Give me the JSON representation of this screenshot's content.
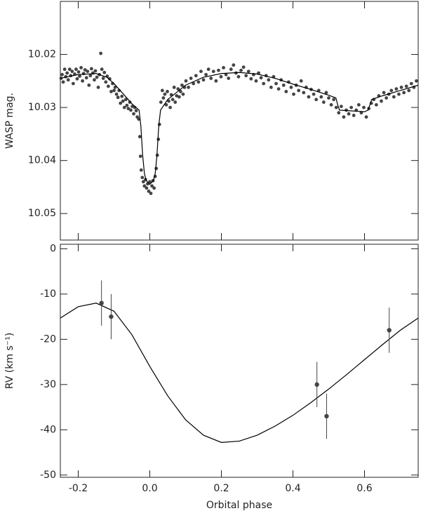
{
  "chart_data": [
    {
      "type": "scatter",
      "ylabel": "WASP mag.",
      "xlim": [
        -0.25,
        0.75
      ],
      "ylim": [
        10.055,
        10.01
      ],
      "xticks": [
        -0.2,
        {
          "value": 0,
          "label": "0.0"
        },
        0.2,
        0.4,
        0.6
      ],
      "show_xtick_labels": false,
      "yticks": [
        10.02,
        10.03,
        10.04,
        10.05
      ],
      "series": [
        {
          "mode": "markers",
          "color": "#444444",
          "x": [
            -0.248,
            -0.245,
            -0.242,
            -0.238,
            -0.235,
            -0.231,
            -0.228,
            -0.224,
            -0.221,
            -0.217,
            -0.214,
            -0.21,
            -0.206,
            -0.203,
            -0.199,
            -0.196,
            -0.192,
            -0.188,
            -0.185,
            -0.181,
            -0.177,
            -0.174,
            -0.17,
            -0.166,
            -0.163,
            -0.159,
            -0.155,
            -0.152,
            -0.148,
            -0.144,
            -0.141,
            -0.137,
            -0.134,
            -0.13,
            -0.127,
            -0.123,
            -0.119,
            -0.116,
            -0.112,
            -0.108,
            -0.104,
            -0.1,
            -0.097,
            -0.093,
            -0.089,
            -0.086,
            -0.082,
            -0.078,
            -0.075,
            -0.071,
            -0.067,
            -0.064,
            -0.06,
            -0.056,
            -0.053,
            -0.049,
            -0.045,
            -0.042,
            -0.038,
            -0.035,
            -0.031,
            -0.028,
            -0.026,
            -0.024,
            -0.021,
            -0.018,
            -0.015,
            -0.012,
            -0.009,
            -0.006,
            -0.003,
            0,
            0.003,
            0.006,
            0.009,
            0.012,
            0.015,
            0.018,
            0.021,
            0.024,
            0.027,
            0.031,
            0.035,
            0.038,
            0.042,
            0.046,
            0.049,
            0.053,
            0.057,
            0.06,
            0.064,
            0.068,
            0.071,
            0.075,
            0.079,
            0.082,
            0.086,
            0.09,
            0.093,
            0.097,
            0.101,
            0.108,
            0.115,
            0.122,
            0.129,
            0.136,
            0.143,
            0.15,
            0.157,
            0.164,
            0.171,
            0.178,
            0.185,
            0.192,
            0.199,
            0.206,
            0.213,
            0.22,
            0.227,
            0.234,
            0.241,
            0.248,
            0.255,
            0.262,
            0.269,
            0.276,
            0.283,
            0.29,
            0.297,
            0.304,
            0.311,
            0.318,
            0.325,
            0.332,
            0.339,
            0.346,
            0.353,
            0.36,
            0.367,
            0.374,
            0.381,
            0.388,
            0.395,
            0.402,
            0.409,
            0.416,
            0.423,
            0.43,
            0.437,
            0.444,
            0.451,
            0.458,
            0.465,
            0.472,
            0.479,
            0.486,
            0.493,
            0.5,
            0.507,
            0.514,
            0.521,
            0.528,
            0.535,
            0.542,
            0.549,
            0.556,
            0.563,
            0.57,
            0.577,
            0.584,
            0.591,
            0.598,
            0.605,
            0.612,
            0.619,
            0.626,
            0.633,
            0.64,
            0.647,
            0.654,
            0.661,
            0.668,
            0.675,
            0.682,
            0.689,
            0.696,
            0.703,
            0.71,
            0.717,
            0.724,
            0.731,
            0.738,
            0.745
          ],
          "values": [
            10.0245,
            10.0238,
            10.0252,
            10.0228,
            10.0242,
            10.0235,
            10.0248,
            10.0228,
            10.024,
            10.0232,
            10.0255,
            10.0237,
            10.0228,
            10.0246,
            10.0233,
            10.0241,
            10.0225,
            10.025,
            10.0236,
            10.0229,
            10.0244,
            10.0232,
            10.0258,
            10.024,
            10.0227,
            10.0235,
            10.0248,
            10.0231,
            10.0243,
            10.0262,
            10.0238,
            10.0198,
            10.0228,
            10.0245,
            10.0234,
            10.0252,
            10.0241,
            10.026,
            10.0246,
            10.027,
            10.0255,
            10.0268,
            10.0262,
            10.0275,
            10.0281,
            10.0268,
            10.0292,
            10.0279,
            10.0288,
            10.03,
            10.0285,
            10.0296,
            10.0302,
            10.029,
            10.0305,
            10.0298,
            10.0312,
            10.03,
            10.0306,
            10.0318,
            10.0322,
            10.0355,
            10.0392,
            10.0418,
            10.0432,
            10.044,
            10.0448,
            10.0436,
            10.0452,
            10.0444,
            10.0458,
            10.044,
            10.0462,
            10.0448,
            10.0438,
            10.0452,
            10.043,
            10.0415,
            10.039,
            10.036,
            10.0332,
            10.029,
            10.0268,
            10.0282,
            10.0275,
            10.0295,
            10.027,
            10.0288,
            10.03,
            10.0276,
            10.0285,
            10.0262,
            10.029,
            10.0278,
            10.0265,
            10.028,
            10.027,
            10.0258,
            10.0275,
            10.0262,
            10.025,
            10.0262,
            10.0245,
            10.0255,
            10.024,
            10.0252,
            10.0232,
            10.0248,
            10.0238,
            10.0228,
            10.0245,
            10.0232,
            10.025,
            10.023,
            10.0242,
            10.0225,
            10.0238,
            10.0245,
            10.0228,
            10.022,
            10.0235,
            10.0242,
            10.023,
            10.0224,
            10.024,
            10.0232,
            10.0246,
            10.0238,
            10.025,
            10.0235,
            10.0244,
            10.0255,
            10.024,
            10.0248,
            10.0262,
            10.0242,
            10.0255,
            10.0265,
            10.0248,
            10.0258,
            10.027,
            10.0252,
            10.0262,
            10.0275,
            10.0258,
            10.0268,
            10.025,
            10.0272,
            10.0262,
            10.028,
            10.0266,
            10.0275,
            10.0285,
            10.0268,
            10.028,
            10.029,
            10.0272,
            10.0282,
            10.0295,
            10.0285,
            10.03,
            10.031,
            10.0298,
            10.0318,
            10.0305,
            10.0312,
            10.03,
            10.0315,
            10.0305,
            10.0295,
            10.031,
            10.03,
            10.0318,
            10.0302,
            10.0292,
            10.0285,
            10.0295,
            10.0278,
            10.0288,
            10.0272,
            10.0282,
            10.0275,
            10.0268,
            10.028,
            10.0265,
            10.0275,
            10.0262,
            10.0272,
            10.026,
            10.0268,
            10.0255,
            10.0262,
            10.025
          ]
        },
        {
          "mode": "line",
          "color": "#000000",
          "x": [
            -0.25,
            -0.2,
            -0.15,
            -0.12,
            -0.1,
            -0.08,
            -0.05,
            -0.03,
            -0.025,
            -0.02,
            -0.015,
            -0.01,
            0,
            0.01,
            0.015,
            0.02,
            0.025,
            0.03,
            0.05,
            0.1,
            0.15,
            0.2,
            0.25,
            0.3,
            0.35,
            0.4,
            0.45,
            0.5,
            0.52,
            0.525,
            0.53,
            0.6,
            0.61,
            0.615,
            0.62,
            0.65,
            0.7,
            0.75
          ],
          "values": [
            10.0245,
            10.0238,
            10.0236,
            10.0243,
            10.0255,
            10.027,
            10.0293,
            10.0305,
            10.0335,
            10.039,
            10.0425,
            10.0438,
            10.0445,
            10.0438,
            10.0425,
            10.039,
            10.0335,
            10.0305,
            10.0285,
            10.0258,
            10.0243,
            10.0236,
            10.0234,
            10.0237,
            10.0245,
            10.0256,
            10.0266,
            10.0277,
            10.0282,
            10.0295,
            10.0305,
            10.0308,
            10.0305,
            10.0295,
            10.0285,
            10.0278,
            10.0268,
            10.0258
          ]
        }
      ]
    },
    {
      "type": "scatter",
      "ylabel": "RV (km s⁻¹)",
      "xlabel": "Orbital phase",
      "xlim": [
        -0.25,
        0.75
      ],
      "ylim": [
        -50.5,
        1
      ],
      "xticks": [
        -0.2,
        {
          "value": 0,
          "label": "0.0"
        },
        0.2,
        0.4,
        0.6
      ],
      "yticks": [
        0,
        -10,
        -20,
        -30,
        -40,
        -50
      ],
      "series": [
        {
          "mode": "line",
          "color": "#000000",
          "x": [
            -0.25,
            -0.2,
            -0.15,
            -0.1,
            -0.05,
            0,
            0.05,
            0.1,
            0.15,
            0.2,
            0.25,
            0.3,
            0.35,
            0.4,
            0.45,
            0.5,
            0.55,
            0.6,
            0.65,
            0.7,
            0.75
          ],
          "values": [
            -15.3,
            -12.8,
            -12,
            -13.8,
            -19,
            -26,
            -32.5,
            -37.8,
            -41.2,
            -42.8,
            -42.5,
            -41.2,
            -39.2,
            -36.8,
            -34,
            -31,
            -27.8,
            -24.5,
            -21.2,
            -18,
            -15.3
          ]
        },
        {
          "mode": "markers",
          "color": "#444444",
          "x": [
            -0.135,
            -0.108,
            0.467,
            0.494,
            0.669
          ],
          "values": [
            -12,
            -15,
            -30,
            -37,
            -18
          ],
          "errors": [
            5,
            5,
            5,
            5,
            5
          ]
        }
      ]
    }
  ]
}
